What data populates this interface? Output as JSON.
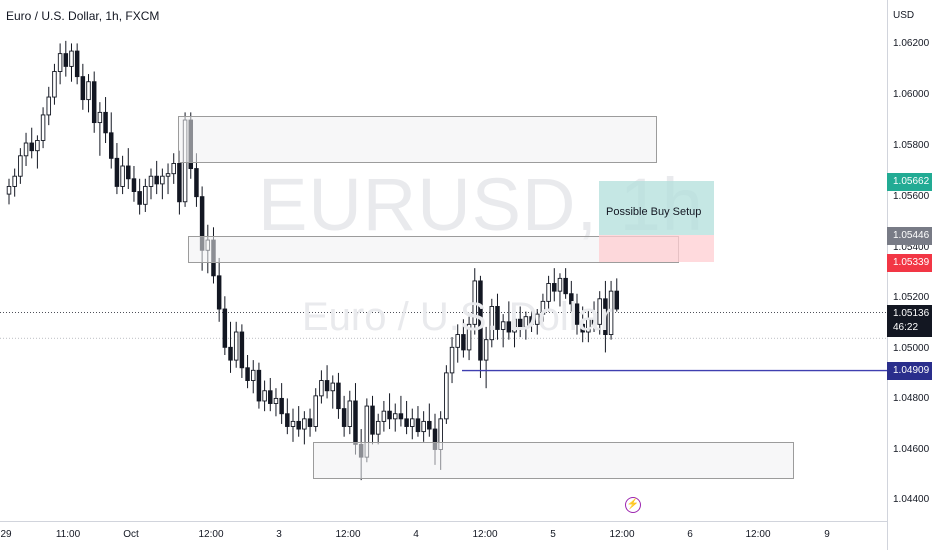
{
  "chart": {
    "title": "Euro / U.S. Dollar, 1h, FXCM",
    "watermark_symbol": "EURUSD, 1h",
    "watermark_name": "Euro / U.S. Dollar",
    "currency": "USD",
    "setup_label": "Possible Buy Setup",
    "event_icon": "lightning-icon"
  },
  "price_ticks": [
    "1.06200",
    "1.06000",
    "1.05800",
    "1.05600",
    "1.05400",
    "1.05200",
    "1.05000",
    "1.04800",
    "1.04600",
    "1.04400"
  ],
  "price_tags": {
    "target": "1.05662",
    "entry": "1.05446",
    "stop": "1.05339",
    "last": "1.05136",
    "countdown": "46:22",
    "level": "1.04909"
  },
  "time_ticks": [
    "29",
    "11:00",
    "Oct",
    "12:00",
    "3",
    "12:00",
    "4",
    "12:00",
    "5",
    "12:00",
    "6",
    "12:00",
    "9"
  ],
  "colors": {
    "setup_profit": "#b2dfdb",
    "setup_stop": "#ffcdd2",
    "target_tag": "#22ab94",
    "entry_tag": "#787b86",
    "stop_tag": "#f23645",
    "last_tag": "#131722",
    "level_line": "#3f3fb0",
    "level_tag": "#2a2e8c"
  },
  "chart_data": {
    "type": "candlestick",
    "symbol": "EURUSD",
    "timeframe": "1h",
    "ylim": [
      1.0432,
      1.0636
    ],
    "horizontal_level": 1.04909,
    "last_price": 1.05136,
    "candles": [
      [
        1.056,
        1.0566,
        1.0556,
        1.0563
      ],
      [
        1.0563,
        1.057,
        1.0559,
        1.0567
      ],
      [
        1.0567,
        1.0578,
        1.0564,
        1.0575
      ],
      [
        1.0575,
        1.0584,
        1.0571,
        1.058
      ],
      [
        1.058,
        1.0586,
        1.0574,
        1.0577
      ],
      [
        1.0577,
        1.0583,
        1.057,
        1.0581
      ],
      [
        1.0581,
        1.0594,
        1.0578,
        1.0591
      ],
      [
        1.0591,
        1.0602,
        1.0587,
        1.0598
      ],
      [
        1.0598,
        1.0611,
        1.0595,
        1.0608
      ],
      [
        1.0608,
        1.0619,
        1.0603,
        1.0615
      ],
      [
        1.0615,
        1.062,
        1.0606,
        1.061
      ],
      [
        1.061,
        1.0619,
        1.0604,
        1.0616
      ],
      [
        1.0616,
        1.0619,
        1.0603,
        1.0606
      ],
      [
        1.0606,
        1.0611,
        1.0593,
        1.0597
      ],
      [
        1.0597,
        1.0607,
        1.0592,
        1.0604
      ],
      [
        1.0604,
        1.0608,
        1.0584,
        1.0588
      ],
      [
        1.0588,
        1.0596,
        1.0575,
        1.0592
      ],
      [
        1.0592,
        1.0598,
        1.058,
        1.0584
      ],
      [
        1.0584,
        1.0592,
        1.057,
        1.0574
      ],
      [
        1.0574,
        1.058,
        1.056,
        1.0563
      ],
      [
        1.0563,
        1.0575,
        1.056,
        1.0571
      ],
      [
        1.0571,
        1.0578,
        1.0562,
        1.0566
      ],
      [
        1.0566,
        1.0571,
        1.0557,
        1.0561
      ],
      [
        1.0561,
        1.0566,
        1.0552,
        1.0556
      ],
      [
        1.0556,
        1.0566,
        1.0553,
        1.0563
      ],
      [
        1.0563,
        1.057,
        1.0558,
        1.0567
      ],
      [
        1.0567,
        1.0573,
        1.056,
        1.0564
      ],
      [
        1.0564,
        1.057,
        1.0558,
        1.0567
      ],
      [
        1.0567,
        1.0572,
        1.056,
        1.0568
      ],
      [
        1.0568,
        1.0576,
        1.0564,
        1.0572
      ],
      [
        1.0572,
        1.0577,
        1.0552,
        1.0557
      ],
      [
        1.0557,
        1.0592,
        1.0555,
        1.0589
      ],
      [
        1.0589,
        1.0592,
        1.0566,
        1.057
      ],
      [
        1.057,
        1.0576,
        1.0555,
        1.0559
      ],
      [
        1.0559,
        1.0563,
        1.053,
        1.0538
      ],
      [
        1.0538,
        1.0548,
        1.0529,
        1.0542
      ],
      [
        1.0542,
        1.0547,
        1.0525,
        1.0528
      ],
      [
        1.0528,
        1.0535,
        1.051,
        1.0515
      ],
      [
        1.0515,
        1.052,
        1.0497,
        1.05
      ],
      [
        1.05,
        1.051,
        1.049,
        1.0495
      ],
      [
        1.0495,
        1.051,
        1.0492,
        1.0506
      ],
      [
        1.0506,
        1.0509,
        1.0488,
        1.0492
      ],
      [
        1.0492,
        1.0497,
        1.0484,
        1.0487
      ],
      [
        1.0487,
        1.0495,
        1.0482,
        1.0491
      ],
      [
        1.0491,
        1.0494,
        1.0476,
        1.0479
      ],
      [
        1.0479,
        1.0487,
        1.0475,
        1.0483
      ],
      [
        1.0483,
        1.0488,
        1.0475,
        1.0478
      ],
      [
        1.0478,
        1.0484,
        1.0473,
        1.048
      ],
      [
        1.048,
        1.0486,
        1.047,
        1.0474
      ],
      [
        1.0474,
        1.048,
        1.0466,
        1.0469
      ],
      [
        1.0469,
        1.0476,
        1.0463,
        1.0471
      ],
      [
        1.0471,
        1.0477,
        1.0465,
        1.0468
      ],
      [
        1.0468,
        1.0475,
        1.0462,
        1.0472
      ],
      [
        1.0472,
        1.0476,
        1.0465,
        1.0469
      ],
      [
        1.0469,
        1.0484,
        1.0467,
        1.0481
      ],
      [
        1.0481,
        1.0491,
        1.0478,
        1.0487
      ],
      [
        1.0487,
        1.0493,
        1.048,
        1.0483
      ],
      [
        1.0483,
        1.0489,
        1.0476,
        1.0486
      ],
      [
        1.0486,
        1.049,
        1.0472,
        1.0476
      ],
      [
        1.0476,
        1.0481,
        1.0465,
        1.0469
      ],
      [
        1.0469,
        1.0483,
        1.0466,
        1.0479
      ],
      [
        1.0479,
        1.0486,
        1.0458,
        1.0462
      ],
      [
        1.0462,
        1.0468,
        1.0448,
        1.0457
      ],
      [
        1.0457,
        1.048,
        1.0455,
        1.0477
      ],
      [
        1.0477,
        1.0481,
        1.0462,
        1.0466
      ],
      [
        1.0466,
        1.0474,
        1.0462,
        1.0471
      ],
      [
        1.0471,
        1.0479,
        1.0467,
        1.0475
      ],
      [
        1.0475,
        1.0482,
        1.0468,
        1.0472
      ],
      [
        1.0472,
        1.0478,
        1.0467,
        1.0474
      ],
      [
        1.0474,
        1.0481,
        1.0469,
        1.0472
      ],
      [
        1.0472,
        1.0479,
        1.0466,
        1.0469
      ],
      [
        1.0469,
        1.0476,
        1.0464,
        1.0472
      ],
      [
        1.0472,
        1.0477,
        1.0465,
        1.0467
      ],
      [
        1.0467,
        1.0475,
        1.0463,
        1.0471
      ],
      [
        1.0471,
        1.0478,
        1.0465,
        1.0468
      ],
      [
        1.0468,
        1.0474,
        1.0454,
        1.046
      ],
      [
        1.046,
        1.0475,
        1.0452,
        1.0472
      ],
      [
        1.0472,
        1.0493,
        1.047,
        1.049
      ],
      [
        1.049,
        1.0504,
        1.0486,
        1.05
      ],
      [
        1.05,
        1.0509,
        1.0494,
        1.0505
      ],
      [
        1.0505,
        1.0511,
        1.0496,
        1.0499
      ],
      [
        1.0499,
        1.0512,
        1.0495,
        1.0509
      ],
      [
        1.0509,
        1.0531,
        1.0505,
        1.0526
      ],
      [
        1.0526,
        1.0528,
        1.0488,
        1.0495
      ],
      [
        1.0495,
        1.0508,
        1.0484,
        1.0503
      ],
      [
        1.0503,
        1.0519,
        1.05,
        1.0516
      ],
      [
        1.0516,
        1.0521,
        1.0503,
        1.0507
      ],
      [
        1.0507,
        1.0513,
        1.05,
        1.051
      ],
      [
        1.051,
        1.0518,
        1.0503,
        1.0506
      ],
      [
        1.0506,
        1.0513,
        1.05,
        1.0511
      ],
      [
        1.0511,
        1.0516,
        1.0504,
        1.0508
      ],
      [
        1.0508,
        1.0514,
        1.0503,
        1.0512
      ],
      [
        1.0512,
        1.0516,
        1.0506,
        1.0509
      ],
      [
        1.0509,
        1.0515,
        1.0505,
        1.0513
      ],
      [
        1.0513,
        1.0521,
        1.051,
        1.0518
      ],
      [
        1.0518,
        1.0528,
        1.0514,
        1.0525
      ],
      [
        1.0525,
        1.0531,
        1.0518,
        1.0522
      ],
      [
        1.0522,
        1.0529,
        1.0516,
        1.0527
      ],
      [
        1.0527,
        1.0531,
        1.0519,
        1.0521
      ],
      [
        1.0521,
        1.0526,
        1.0514,
        1.0517
      ],
      [
        1.0517,
        1.0521,
        1.0505,
        1.0509
      ],
      [
        1.0509,
        1.0516,
        1.0502,
        1.0506
      ],
      [
        1.0506,
        1.0515,
        1.0502,
        1.0511
      ],
      [
        1.0511,
        1.0518,
        1.0506,
        1.0509
      ],
      [
        1.0509,
        1.0522,
        1.0505,
        1.0519
      ],
      [
        1.0519,
        1.0526,
        1.0498,
        1.0505
      ],
      [
        1.0505,
        1.0526,
        1.0503,
        1.0522
      ],
      [
        1.0522,
        1.0527,
        1.0514,
        1.0515
      ]
    ]
  }
}
